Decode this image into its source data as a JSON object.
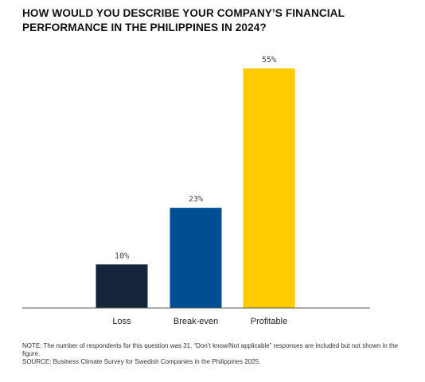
{
  "chart_data": {
    "type": "bar",
    "title": "HOW WOULD YOU DESCRIBE YOUR COMPANY’S FINANCIAL PERFORMANCE IN THE PHILIPPINES IN 2024?",
    "categories": [
      "Loss",
      "Break-even",
      "Profitable"
    ],
    "values": [
      10,
      23,
      55
    ],
    "value_labels": [
      "10%",
      "23%",
      "55%"
    ],
    "colors": [
      "#16263a",
      "#004f92",
      "#fecb00"
    ],
    "xlabel": "",
    "ylabel": "",
    "ylim": [
      0,
      55
    ],
    "grid": false,
    "legend": "none"
  },
  "notes": {
    "note": "NOTE: The number of respondents for this question was 31. “Don’t know/Not applicable” responses are included but not shown in the figure.",
    "source": "SOURCE: Business Climate Survey for Swedish Companies in the Philippines 2025."
  }
}
